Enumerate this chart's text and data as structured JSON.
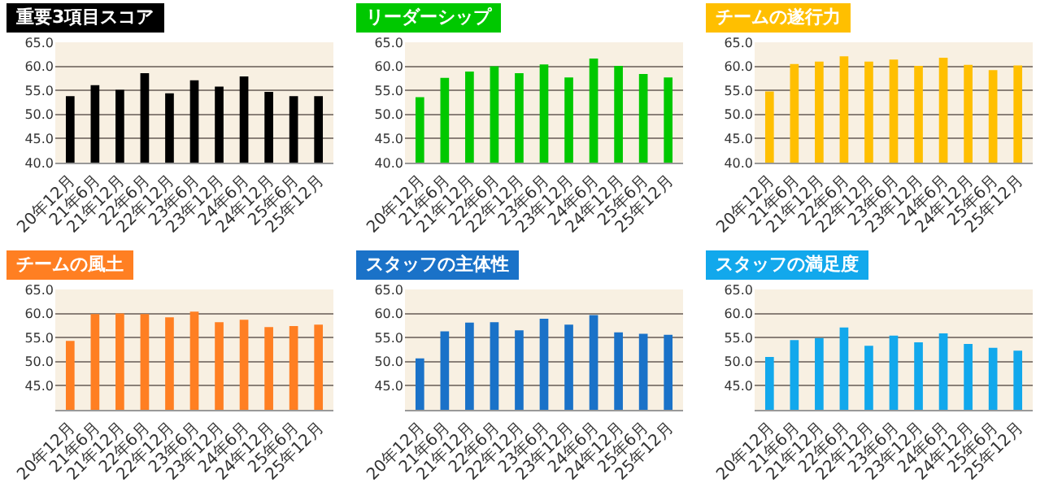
{
  "chart_data": [
    {
      "type": "bar",
      "title": "重要3項目スコア",
      "categories": [
        "20年12月",
        "21年6月",
        "21年12月",
        "22年6月",
        "22年12月",
        "23年6月",
        "23年12月",
        "24年6月",
        "24年12月",
        "25年6月",
        "25年12月"
      ],
      "values": [
        53.8,
        56.1,
        55.1,
        58.6,
        54.4,
        57.1,
        55.8,
        57.9,
        54.7,
        53.8,
        53.8
      ],
      "color": "#000000",
      "ylim": [
        40,
        65
      ],
      "yticks": [
        {
          "value": 40,
          "label": "40.0"
        },
        {
          "value": 45,
          "label": "45.0"
        },
        {
          "value": 50,
          "label": "50.0"
        },
        {
          "value": 55,
          "label": "55.0"
        },
        {
          "value": 60,
          "label": "60.0"
        },
        {
          "value": 65,
          "label": "65.0"
        }
      ],
      "grid": "y"
    },
    {
      "type": "bar",
      "title": "リーダーシップ",
      "categories": [
        "20年12月",
        "21年6月",
        "21年12月",
        "22年6月",
        "22年12月",
        "23年6月",
        "23年12月",
        "24年6月",
        "24年12月",
        "25年6月",
        "25年12月"
      ],
      "values": [
        53.6,
        57.6,
        58.9,
        60.0,
        58.6,
        60.4,
        57.7,
        61.6,
        60.1,
        58.4,
        57.7
      ],
      "color": "#00c800",
      "ylim": [
        40,
        65
      ],
      "yticks": [
        {
          "value": 40,
          "label": "40.0"
        },
        {
          "value": 45,
          "label": "45.0"
        },
        {
          "value": 50,
          "label": "50.0"
        },
        {
          "value": 55,
          "label": "55.0"
        },
        {
          "value": 60,
          "label": "60.0"
        },
        {
          "value": 65,
          "label": "65.0"
        }
      ],
      "grid": "y"
    },
    {
      "type": "bar",
      "title": "チームの遂行力",
      "categories": [
        "20年12月",
        "21年6月",
        "21年12月",
        "22年6月",
        "22年12月",
        "23年6月",
        "23年12月",
        "24年6月",
        "24年12月",
        "25年6月",
        "25年12月"
      ],
      "values": [
        54.8,
        60.5,
        61.0,
        62.1,
        61.0,
        61.4,
        60.1,
        61.8,
        60.3,
        59.2,
        60.2
      ],
      "color": "#ffbf00",
      "ylim": [
        40,
        65
      ],
      "yticks": [
        {
          "value": 40,
          "label": "40.0"
        },
        {
          "value": 45,
          "label": "45.0"
        },
        {
          "value": 50,
          "label": "50.0"
        },
        {
          "value": 55,
          "label": "55.0"
        },
        {
          "value": 60,
          "label": "60.0"
        },
        {
          "value": 65,
          "label": "65.0"
        }
      ],
      "grid": "y"
    },
    {
      "type": "bar",
      "title": "チームの風土",
      "categories": [
        "20年12月",
        "21年6月",
        "21年12月",
        "22年6月",
        "22年12月",
        "23年6月",
        "23年12月",
        "24年6月",
        "24年12月",
        "25年6月",
        "25年12月"
      ],
      "values": [
        54.3,
        59.9,
        60.0,
        59.9,
        59.2,
        60.4,
        58.2,
        58.7,
        57.2,
        57.4,
        57.7
      ],
      "color": "#ff7f22",
      "ylim": [
        40,
        65
      ],
      "yticks": [
        {
          "value": 45,
          "label": "45.0"
        },
        {
          "value": 50,
          "label": "50.0"
        },
        {
          "value": 55,
          "label": "55.0"
        },
        {
          "value": 60,
          "label": "60.0"
        },
        {
          "value": 65,
          "label": "65.0"
        }
      ],
      "grid": "y"
    },
    {
      "type": "bar",
      "title": "スタッフの主体性",
      "categories": [
        "20年12月",
        "21年6月",
        "21年12月",
        "22年6月",
        "22年12月",
        "23年6月",
        "23年12月",
        "24年6月",
        "24年12月",
        "25年6月",
        "25年12月"
      ],
      "values": [
        50.7,
        56.3,
        58.1,
        58.2,
        56.5,
        58.9,
        57.7,
        59.7,
        56.1,
        55.8,
        55.6
      ],
      "color": "#1a72c8",
      "ylim": [
        40,
        65
      ],
      "yticks": [
        {
          "value": 45,
          "label": "45.0"
        },
        {
          "value": 50,
          "label": "50.0"
        },
        {
          "value": 55,
          "label": "55.0"
        },
        {
          "value": 60,
          "label": "60.0"
        },
        {
          "value": 65,
          "label": "65.0"
        }
      ],
      "grid": "y"
    },
    {
      "type": "bar",
      "title": "スタッフの満足度",
      "categories": [
        "20年12月",
        "21年6月",
        "21年12月",
        "22年6月",
        "22年12月",
        "23年6月",
        "23年12月",
        "24年6月",
        "24年12月",
        "25年6月",
        "25年12月"
      ],
      "values": [
        51.0,
        54.5,
        54.9,
        57.1,
        53.3,
        55.4,
        54.0,
        55.9,
        53.7,
        52.9,
        52.3
      ],
      "color": "#12a8ec",
      "ylim": [
        40,
        65
      ],
      "yticks": [
        {
          "value": 45,
          "label": "45.0"
        },
        {
          "value": 50,
          "label": "50.0"
        },
        {
          "value": 55,
          "label": "55.0"
        },
        {
          "value": 60,
          "label": "60.0"
        },
        {
          "value": 65,
          "label": "65.0"
        }
      ],
      "grid": "y"
    }
  ]
}
